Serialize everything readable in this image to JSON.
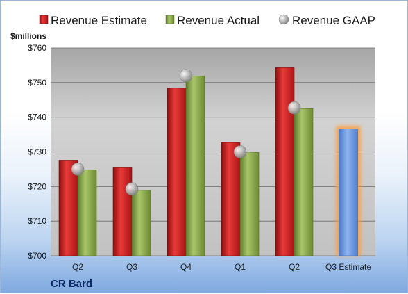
{
  "chart_data": {
    "type": "bar",
    "unit_label": "$millions",
    "categories": [
      "Q2",
      "Q3",
      "Q4",
      "Q1",
      "Q2",
      "Q3 Estimate"
    ],
    "series": [
      {
        "name": "Revenue Estimate",
        "kind": "bar",
        "color": "#cc1f1f",
        "values": [
          727.6,
          725.6,
          748.4,
          732.7,
          754.3,
          null
        ]
      },
      {
        "name": "Revenue Actual",
        "kind": "bar",
        "color": "#8aa84a",
        "values": [
          724.8,
          718.9,
          751.9,
          729.9,
          742.5,
          null
        ]
      },
      {
        "name": "Revenue GAAP",
        "kind": "marker",
        "color": "#b8b8b8",
        "values": [
          725.0,
          719.3,
          752.0,
          730.0,
          742.7,
          null
        ]
      },
      {
        "name": "",
        "kind": "highlight-bar",
        "color": "#6f9be0",
        "values": [
          null,
          null,
          null,
          null,
          null,
          736.6
        ]
      }
    ],
    "ylim": [
      700,
      760
    ],
    "yticks": [
      "$700",
      "$710",
      "$720",
      "$730",
      "$740",
      "$750",
      "$760"
    ],
    "ytick_values": [
      700,
      710,
      720,
      730,
      740,
      750,
      760
    ],
    "grid": true,
    "legend_position": "top"
  },
  "brand": "CR Bard"
}
